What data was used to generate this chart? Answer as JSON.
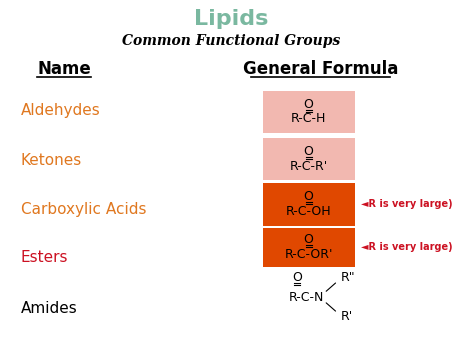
{
  "title": "Lipids",
  "title_color": "#7ab8a0",
  "subtitle": "Common Functional Groups",
  "subtitle_color": "#000000",
  "name_header": "Name",
  "formula_header": "General Formula",
  "header_color": "#000000",
  "bg_color": "#ffffff",
  "names": [
    "Aldehydes",
    "Ketones",
    "Carboxylic Acids",
    "Esters",
    "Amides"
  ],
  "name_colors": [
    "#e07820",
    "#e07820",
    "#e07820",
    "#cc1122",
    "#000000"
  ],
  "formulas": [
    {
      "top": "O",
      "bottom": "R-C-H",
      "bg": "#f2b8b0"
    },
    {
      "top": "O",
      "bottom": "R-C-R'",
      "bg": "#f2b8b0"
    },
    {
      "top": "O",
      "bottom": "R-C-OH",
      "bg": "#e04800"
    },
    {
      "top": "O",
      "bottom": "R-C-OR'",
      "bg": "#e04800"
    },
    {
      "top": "O",
      "bottom": "R-C-N",
      "bg": null
    }
  ],
  "annotations": [
    {
      "text": "◄R is very large)",
      "color": "#cc1122"
    },
    {
      "text": "◄R is very large)",
      "color": "#cc1122"
    }
  ]
}
